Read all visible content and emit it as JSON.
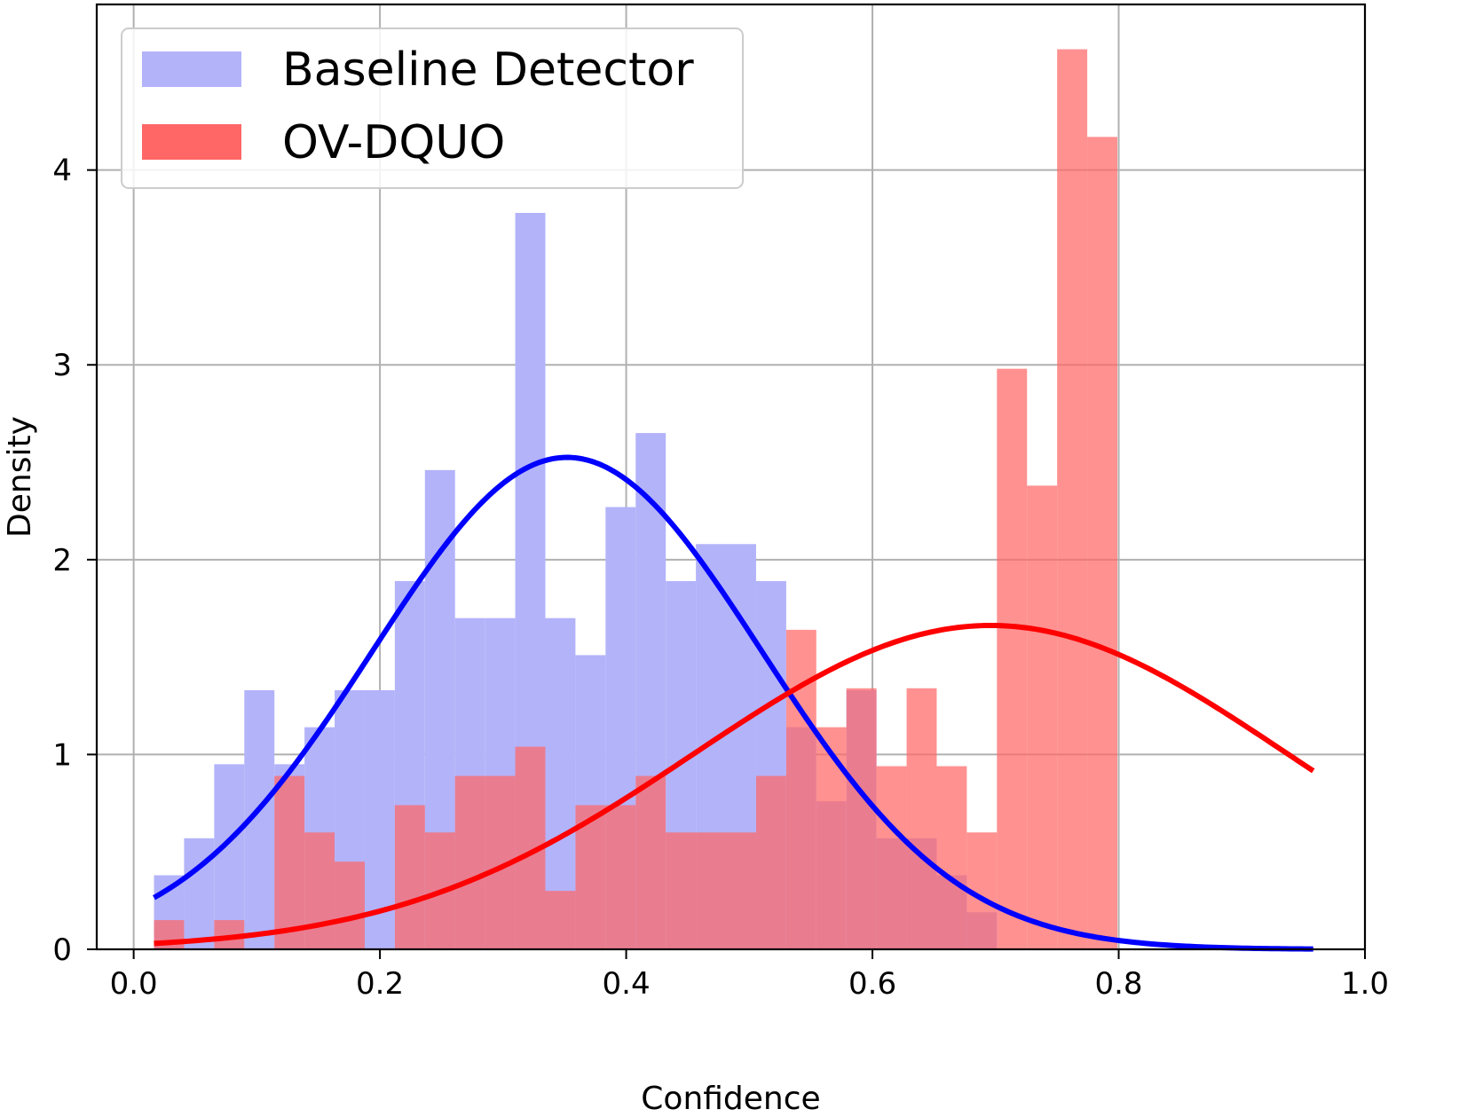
{
  "chart_data": {
    "type": "histogram",
    "xlabel": "Confidence",
    "ylabel": "Density",
    "xlim": [
      -0.03,
      1.0
    ],
    "ylim": [
      0,
      4.85
    ],
    "xticks": [
      0.0,
      0.2,
      0.4,
      0.6,
      0.8,
      1.0
    ],
    "xtick_labels": [
      "0.0",
      "0.2",
      "0.4",
      "0.6",
      "0.8",
      "1.0"
    ],
    "yticks": [
      0,
      1,
      2,
      3,
      4
    ],
    "ytick_labels": [
      "0",
      "1",
      "2",
      "3",
      "4"
    ],
    "grid": true,
    "legend": {
      "position": "top-left",
      "entries": [
        {
          "label": "Baseline Detector",
          "color": "#b3b3fa"
        },
        {
          "label": "OV-DQUO",
          "color": "#ff6666"
        }
      ]
    },
    "bins": {
      "start": 0.0165,
      "width": 0.02445
    },
    "series": [
      {
        "name": "Baseline Detector",
        "color": "#b3b3fa",
        "opacity": 1.0,
        "values": [
          0.38,
          0.57,
          0.95,
          1.33,
          0.95,
          1.14,
          1.33,
          1.33,
          1.89,
          2.46,
          1.7,
          1.7,
          3.78,
          1.7,
          1.51,
          2.27,
          2.65,
          1.89,
          2.08,
          2.08,
          1.89,
          1.14,
          0.76,
          1.33,
          0.57,
          0.57,
          0.38,
          0.19,
          0.0,
          0.0,
          0.0,
          0.0
        ]
      },
      {
        "name": "OV-DQUO",
        "color": "#ff6666",
        "opacity": 0.72,
        "values": [
          0.15,
          0.0,
          0.15,
          0.0,
          0.89,
          0.6,
          0.45,
          0.0,
          0.74,
          0.6,
          0.89,
          0.89,
          1.04,
          0.3,
          0.74,
          0.74,
          0.89,
          0.6,
          0.6,
          0.6,
          0.89,
          1.64,
          1.14,
          1.34,
          0.94,
          1.34,
          0.94,
          0.6,
          2.98,
          2.38,
          4.62,
          4.17
        ]
      }
    ],
    "curves": [
      {
        "name": "Baseline Detector fit",
        "color": "#0000ff",
        "mean": 0.352,
        "std": 0.158,
        "x_range": [
          0.0165,
          0.958
        ]
      },
      {
        "name": "OV-DQUO fit",
        "color": "#ff0000",
        "mean": 0.696,
        "std": 0.24,
        "x_range": [
          0.0165,
          0.958
        ]
      }
    ]
  }
}
